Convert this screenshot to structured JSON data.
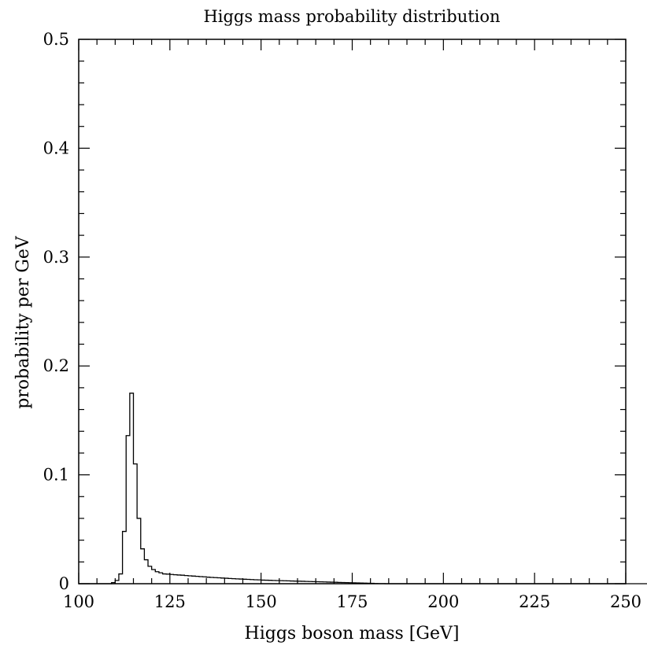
{
  "chart_data": {
    "type": "step",
    "title": "Higgs mass probability distribution",
    "xlabel": "Higgs boson mass [GeV]",
    "ylabel": "probability per GeV",
    "xlim": [
      100,
      250
    ],
    "ylim": [
      0,
      0.5
    ],
    "x_ticks": [
      100,
      125,
      150,
      175,
      200,
      225,
      250
    ],
    "x_tick_labels": [
      "100",
      "125",
      "150",
      "175",
      "200",
      "225",
      "250"
    ],
    "y_ticks": [
      0,
      0.1,
      0.2,
      0.3,
      0.4,
      0.5
    ],
    "y_tick_labels": [
      "0",
      "0.1",
      "0.2",
      "0.3",
      "0.4",
      "0.5"
    ],
    "grid": false,
    "bin_width": 1,
    "bin_edges_start": 109,
    "values": [
      0.001,
      0.003,
      0.009,
      0.048,
      0.136,
      0.175,
      0.11,
      0.06,
      0.032,
      0.022,
      0.016,
      0.013,
      0.011,
      0.01,
      0.009,
      0.0088,
      0.0085,
      0.0082,
      0.008,
      0.0078,
      0.0075,
      0.0072,
      0.007,
      0.0068,
      0.0065,
      0.0063,
      0.006,
      0.0058,
      0.0056,
      0.0054,
      0.0052,
      0.005,
      0.0048,
      0.0046,
      0.0044,
      0.0043,
      0.0041,
      0.004,
      0.0038,
      0.0036,
      0.0035,
      0.0033,
      0.0032,
      0.0031,
      0.003,
      0.0029,
      0.0028,
      0.0027,
      0.0026,
      0.0025,
      0.0024,
      0.0023,
      0.0022,
      0.0021,
      0.002,
      0.0019,
      0.0018,
      0.0017,
      0.0016,
      0.0015,
      0.0014,
      0.0013,
      0.0012,
      0.0011,
      0.001,
      0.0009,
      0.0008,
      0.0007,
      0.0006,
      0.0005,
      0.0004,
      0.0003,
      0.0002,
      0.0001,
      0.0001,
      0,
      0,
      0,
      0,
      0,
      0,
      0,
      0,
      0,
      0,
      0,
      0,
      0,
      0,
      0,
      0,
      0,
      0,
      0,
      0,
      0,
      0,
      0,
      0,
      0,
      0,
      0,
      0,
      0,
      0,
      0,
      0,
      0,
      0,
      0,
      0,
      0,
      0,
      0,
      0,
      0,
      0,
      0,
      0,
      0,
      0,
      0,
      0,
      0,
      0,
      0,
      0,
      0,
      0,
      0,
      0,
      0,
      0,
      0,
      0,
      0,
      0,
      0,
      0,
      0,
      0,
      0,
      0,
      0,
      0,
      0,
      0,
      0,
      0,
      0,
      0
    ]
  }
}
